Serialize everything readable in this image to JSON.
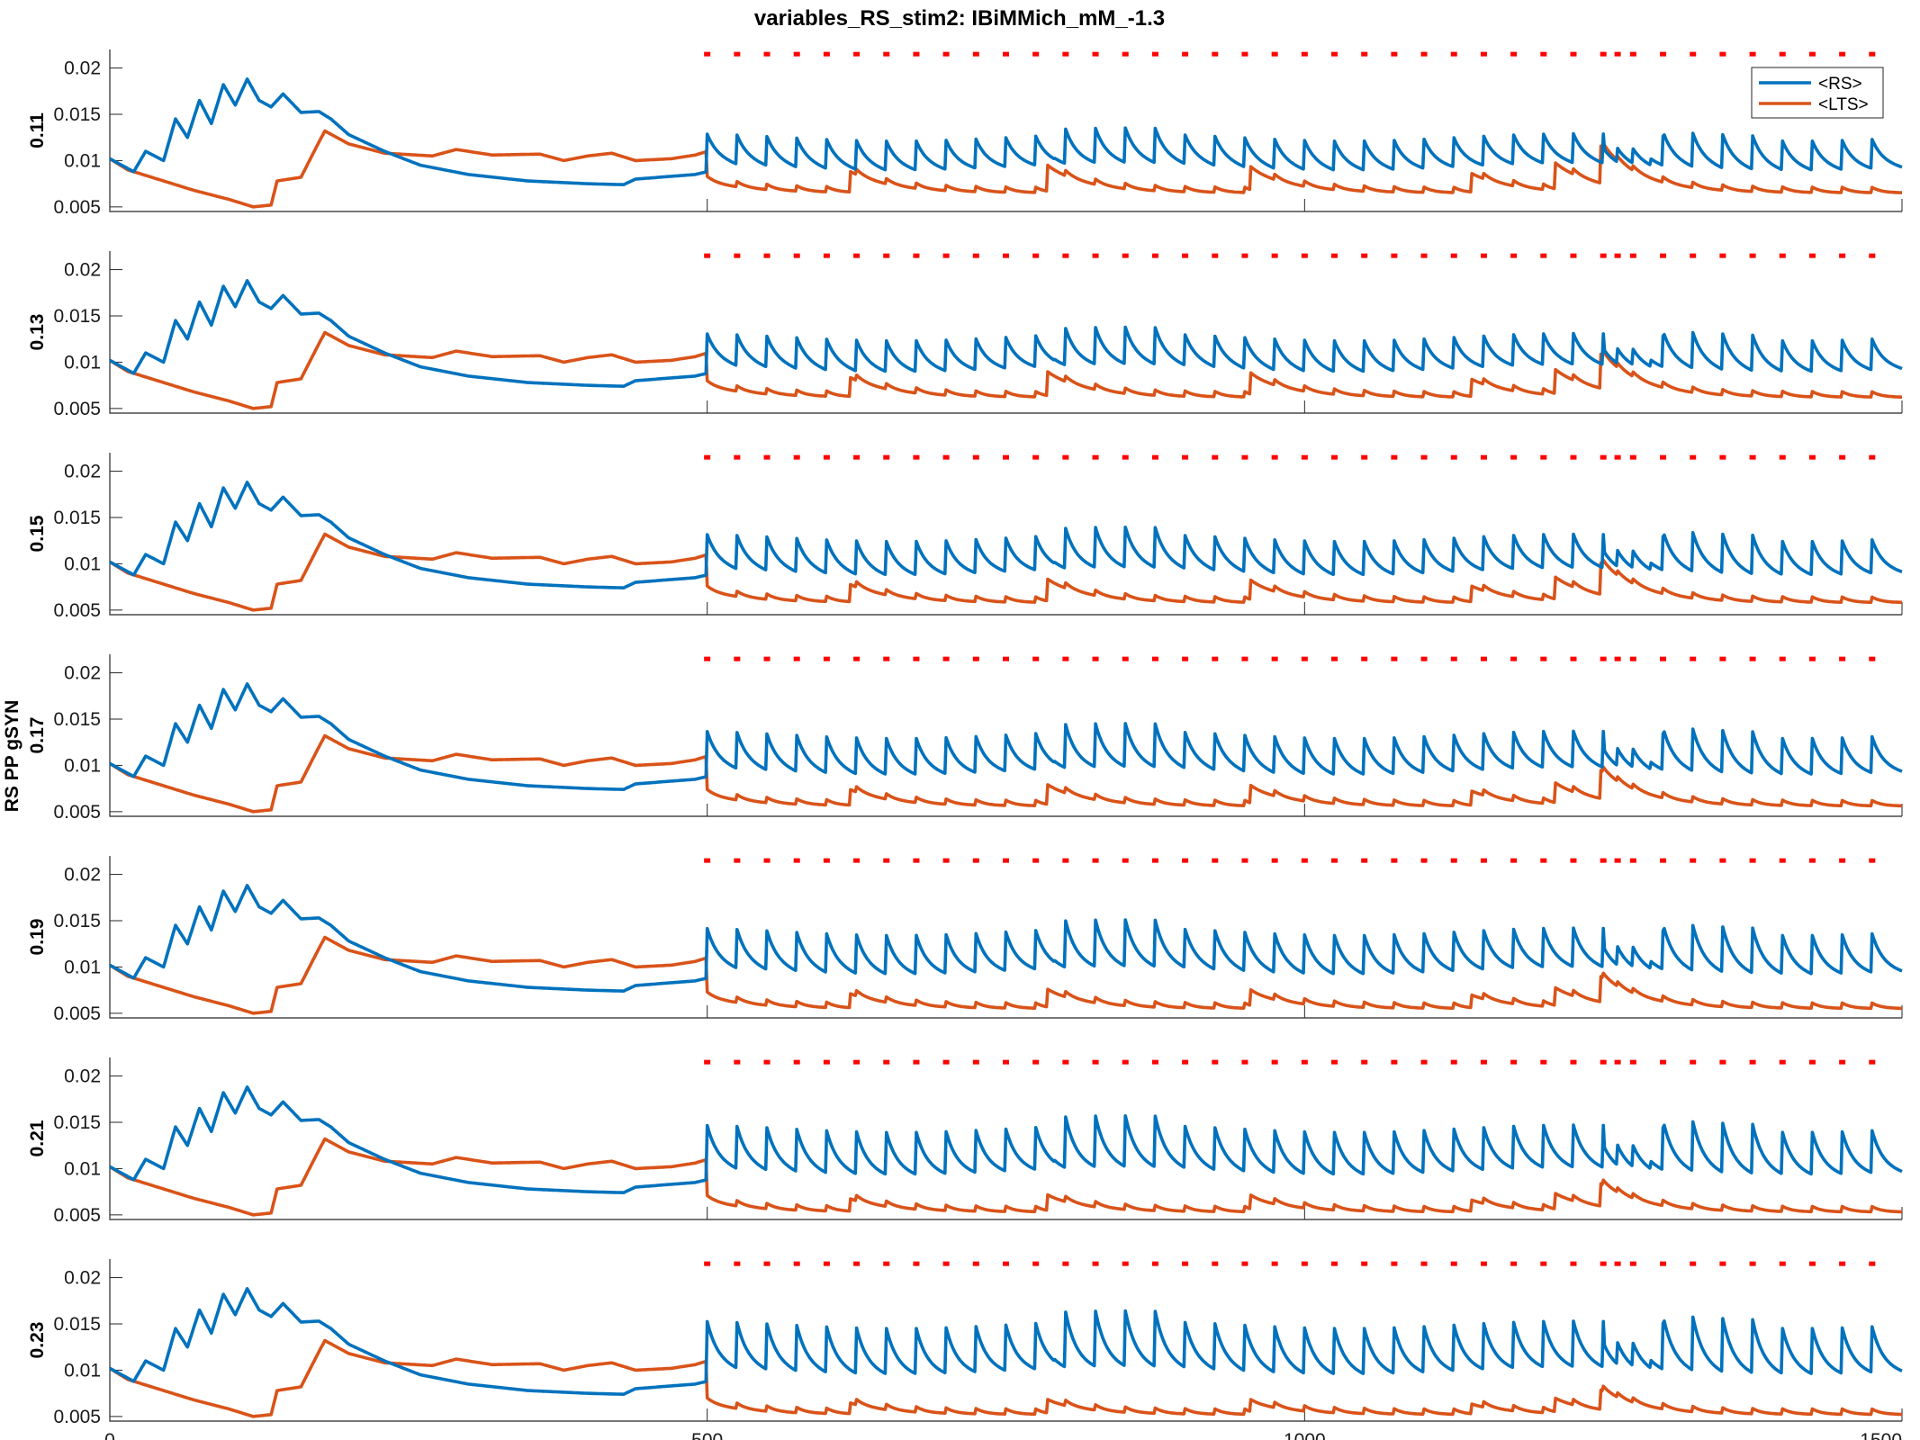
{
  "title": "variables_RS_stim2: IBiMMich_mM_-1.3",
  "ylabel": "RS PP gSYN",
  "colors": {
    "rs": "#0072BD",
    "lts": "#D95319",
    "pulse": "#FF0000",
    "axis": "#262626"
  },
  "legend": {
    "placement": "top-right of first panel",
    "entries": [
      "<RS>",
      "<LTS>"
    ]
  },
  "chart_data": {
    "type": "line",
    "x_range": [
      0,
      1500
    ],
    "y_range": [
      0.0045,
      0.022
    ],
    "x_ticks": [
      "0",
      "500",
      "1000",
      "1500"
    ],
    "y_ticks": [
      "0.02",
      "0.015",
      "0.01",
      "0.005"
    ],
    "y_tick_values": [
      0.02,
      0.015,
      0.01,
      0.005
    ],
    "stim_pulse_times": [
      500,
      525,
      550,
      575,
      600,
      625,
      650,
      675,
      700,
      725,
      750,
      775,
      800,
      825,
      850,
      875,
      900,
      925,
      950,
      975,
      1000,
      1025,
      1050,
      1075,
      1100,
      1125,
      1150,
      1175,
      1200,
      1225,
      1250,
      1262,
      1275,
      1300,
      1325,
      1350,
      1375,
      1400,
      1425,
      1450,
      1475
    ],
    "stim_pulse_level": 0.0215,
    "panels": [
      {
        "label": "0.11",
        "rs_amp": 0.0025,
        "lts_amp": 0.0025,
        "rs_base": 0.01,
        "lts_base": 0.0065
      },
      {
        "label": "0.13",
        "rs_amp": 0.0027,
        "lts_amp": 0.0023,
        "rs_base": 0.01,
        "lts_base": 0.0062
      },
      {
        "label": "0.15",
        "rs_amp": 0.003,
        "lts_amp": 0.0021,
        "rs_base": 0.0098,
        "lts_base": 0.0058
      },
      {
        "label": "0.17",
        "rs_amp": 0.0033,
        "lts_amp": 0.0019,
        "rs_base": 0.01,
        "lts_base": 0.0056
      },
      {
        "label": "0.19",
        "rs_amp": 0.0036,
        "lts_amp": 0.0017,
        "rs_base": 0.0102,
        "lts_base": 0.0055
      },
      {
        "label": "0.21",
        "rs_amp": 0.004,
        "lts_amp": 0.0015,
        "rs_base": 0.0103,
        "lts_base": 0.0053
      },
      {
        "label": "0.23",
        "rs_amp": 0.0044,
        "lts_amp": 0.0013,
        "rs_base": 0.0105,
        "lts_base": 0.0052
      }
    ],
    "series": [
      {
        "name": "<RS>"
      },
      {
        "name": "<LTS>"
      }
    ],
    "baseline_rs": [
      [
        0,
        0.0102
      ],
      [
        20,
        0.0088
      ],
      [
        30,
        0.011
      ],
      [
        45,
        0.01
      ],
      [
        55,
        0.0145
      ],
      [
        65,
        0.0125
      ],
      [
        75,
        0.0165
      ],
      [
        85,
        0.014
      ],
      [
        95,
        0.0182
      ],
      [
        105,
        0.016
      ],
      [
        115,
        0.0188
      ],
      [
        125,
        0.0165
      ],
      [
        135,
        0.0158
      ],
      [
        145,
        0.0172
      ],
      [
        160,
        0.0152
      ],
      [
        175,
        0.0153
      ],
      [
        185,
        0.0145
      ],
      [
        200,
        0.0128
      ],
      [
        230,
        0.011
      ],
      [
        260,
        0.0095
      ],
      [
        300,
        0.0085
      ],
      [
        350,
        0.0078
      ],
      [
        400,
        0.0075
      ],
      [
        430,
        0.0074
      ],
      [
        440,
        0.008
      ],
      [
        460,
        0.0082
      ],
      [
        490,
        0.0085
      ],
      [
        500,
        0.0088
      ]
    ],
    "baseline_lts": [
      [
        0,
        0.0102
      ],
      [
        15,
        0.009
      ],
      [
        40,
        0.008
      ],
      [
        70,
        0.0068
      ],
      [
        100,
        0.0058
      ],
      [
        120,
        0.005
      ],
      [
        135,
        0.0052
      ],
      [
        140,
        0.0078
      ],
      [
        150,
        0.008
      ],
      [
        160,
        0.0082
      ],
      [
        175,
        0.012
      ],
      [
        180,
        0.0132
      ],
      [
        200,
        0.0118
      ],
      [
        230,
        0.0108
      ],
      [
        270,
        0.0105
      ],
      [
        290,
        0.0112
      ],
      [
        320,
        0.0106
      ],
      [
        360,
        0.0107
      ],
      [
        380,
        0.01
      ],
      [
        400,
        0.0105
      ],
      [
        420,
        0.0108
      ],
      [
        440,
        0.01
      ],
      [
        470,
        0.0102
      ],
      [
        490,
        0.0106
      ],
      [
        500,
        0.011
      ]
    ]
  }
}
